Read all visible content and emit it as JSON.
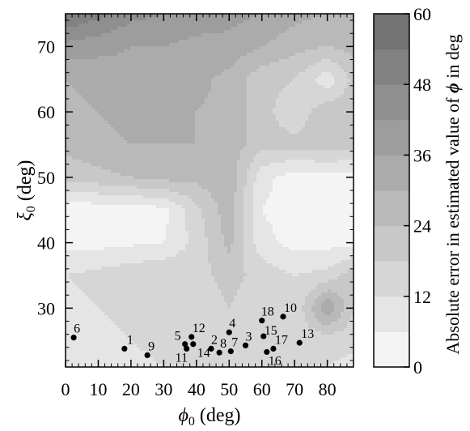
{
  "chart_data": {
    "type": "contour",
    "xlabel_sym": "ϕ",
    "xlabel_sub": "0",
    "xlabel_unit": " (deg)",
    "ylabel_sym": "ξ",
    "ylabel_sub": "0",
    "ylabel_unit": " (deg)",
    "xlim": [
      0,
      88
    ],
    "ylim": [
      21,
      75
    ],
    "xticks": [
      0,
      10,
      20,
      30,
      40,
      50,
      60,
      70,
      80
    ],
    "yticks": [
      30,
      40,
      50,
      60,
      70
    ],
    "colorbar": {
      "label_pre": "Absolute error in estimated value of ",
      "label_sym": "ϕ",
      "label_post": " in deg",
      "ticks": [
        0,
        12,
        24,
        36,
        48,
        60
      ],
      "levels": [
        0,
        6,
        12,
        18,
        24,
        30,
        36,
        42,
        48,
        54,
        60
      ],
      "colors": [
        "#f4f4f4",
        "#e5e5e5",
        "#d6d6d6",
        "#c8c8c8",
        "#b9b9b9",
        "#ababab",
        "#9d9d9d",
        "#8f8f8f",
        "#818181",
        "#737373"
      ]
    },
    "points": [
      {
        "label": "1",
        "x": 18,
        "y": 23.8
      },
      {
        "label": "2",
        "x": 44.5,
        "y": 23.8
      },
      {
        "label": "3",
        "x": 55,
        "y": 24.3
      },
      {
        "label": "4",
        "x": 50,
        "y": 26.3
      },
      {
        "label": "5",
        "x": 36.5,
        "y": 24.5
      },
      {
        "label": "6",
        "x": 2.5,
        "y": 25.5
      },
      {
        "label": "7",
        "x": 50.5,
        "y": 23.4
      },
      {
        "label": "8",
        "x": 47,
        "y": 23.2
      },
      {
        "label": "9",
        "x": 25,
        "y": 22.8
      },
      {
        "label": "10",
        "x": 66.5,
        "y": 28.7
      },
      {
        "label": "11",
        "x": 37,
        "y": 23.8
      },
      {
        "label": "12",
        "x": 38.5,
        "y": 25.6
      },
      {
        "label": "13",
        "x": 71.5,
        "y": 24.7
      },
      {
        "label": "14",
        "x": 39,
        "y": 24.5
      },
      {
        "label": "15",
        "x": 60.5,
        "y": 25.7
      },
      {
        "label": "16",
        "x": 61.5,
        "y": 23.3
      },
      {
        "label": "17",
        "x": 63.5,
        "y": 23.8
      },
      {
        "label": "18",
        "x": 60,
        "y": 28.1
      }
    ],
    "grid": {
      "x": [
        0,
        10,
        20,
        30,
        40,
        50,
        60,
        70,
        80,
        88
      ],
      "y": [
        21,
        25,
        30,
        35,
        40,
        45,
        50,
        55,
        60,
        65,
        70,
        75
      ],
      "z": [
        [
          6,
          8,
          10,
          12,
          12,
          14,
          14,
          14,
          12,
          10
        ],
        [
          8,
          10,
          12,
          14,
          14,
          16,
          14,
          14,
          14,
          14
        ],
        [
          10,
          12,
          14,
          16,
          14,
          18,
          14,
          12,
          36,
          18
        ],
        [
          12,
          14,
          16,
          18,
          16,
          20,
          16,
          12,
          14,
          22
        ],
        [
          4,
          4,
          5,
          6,
          14,
          26,
          8,
          4,
          4,
          4
        ],
        [
          2,
          2,
          3,
          4,
          16,
          28,
          6,
          3,
          2,
          2
        ],
        [
          20,
          22,
          24,
          26,
          26,
          28,
          8,
          3,
          3,
          3
        ],
        [
          26,
          28,
          30,
          30,
          30,
          28,
          20,
          20,
          22,
          20
        ],
        [
          28,
          30,
          32,
          32,
          30,
          28,
          20,
          14,
          22,
          22
        ],
        [
          30,
          32,
          34,
          34,
          32,
          28,
          20,
          18,
          8,
          20
        ],
        [
          40,
          38,
          36,
          36,
          34,
          34,
          30,
          26,
          24,
          26
        ],
        [
          54,
          50,
          44,
          42,
          40,
          38,
          36,
          32,
          30,
          28
        ]
      ]
    }
  }
}
